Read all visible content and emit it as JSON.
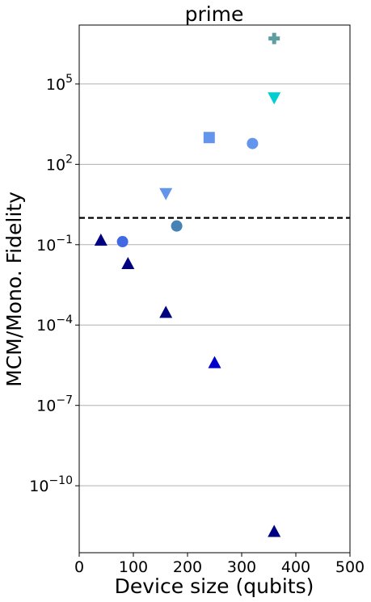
{
  "chart_data": {
    "type": "scatter",
    "title": "prime",
    "xlabel": "Device size (qubits)",
    "ylabel": "MCM/Mono. Fidelity",
    "xlim": [
      0,
      500
    ],
    "ylim_log10": [
      -12.5,
      7.2
    ],
    "y_scale": "log",
    "x_ticks": [
      0,
      100,
      200,
      300,
      400,
      500
    ],
    "y_ticks": [
      {
        "exp": -10,
        "base": "10",
        "sup": "−10"
      },
      {
        "exp": -7,
        "base": "10",
        "sup": "−7"
      },
      {
        "exp": -4,
        "base": "10",
        "sup": "−4"
      },
      {
        "exp": -1,
        "base": "10",
        "sup": "−1"
      },
      {
        "exp": 2,
        "base": "10",
        "sup": "2"
      },
      {
        "exp": 5,
        "base": "10",
        "sup": "5"
      }
    ],
    "grid": "horizontal",
    "reference_line": {
      "y": 1,
      "style": "dashed",
      "color": "#000000"
    },
    "points": [
      {
        "x": 360,
        "y": 5000000,
        "marker": "plus",
        "color": "#5f9ea0"
      },
      {
        "x": 360,
        "y": 30000,
        "marker": "triangle-down",
        "color": "#00ced1"
      },
      {
        "x": 240,
        "y": 1000,
        "marker": "square",
        "color": "#6495ed"
      },
      {
        "x": 320,
        "y": 600,
        "marker": "circle",
        "color": "#6495ed"
      },
      {
        "x": 160,
        "y": 8,
        "marker": "triangle-down",
        "color": "#6495ed"
      },
      {
        "x": 180,
        "y": 0.5,
        "marker": "circle",
        "color": "#4682b4"
      },
      {
        "x": 40,
        "y": 0.15,
        "marker": "triangle-up",
        "color": "#000080"
      },
      {
        "x": 80,
        "y": 0.13,
        "marker": "circle",
        "color": "#4169e1"
      },
      {
        "x": 90,
        "y": 0.02,
        "marker": "triangle-up",
        "color": "#000080"
      },
      {
        "x": 160,
        "y": 0.0003,
        "marker": "triangle-up",
        "color": "#000080"
      },
      {
        "x": 250,
        "y": 4e-06,
        "marker": "triangle-up",
        "color": "#0000cd"
      },
      {
        "x": 360,
        "y": 2e-12,
        "marker": "triangle-up",
        "color": "#000080"
      }
    ]
  }
}
